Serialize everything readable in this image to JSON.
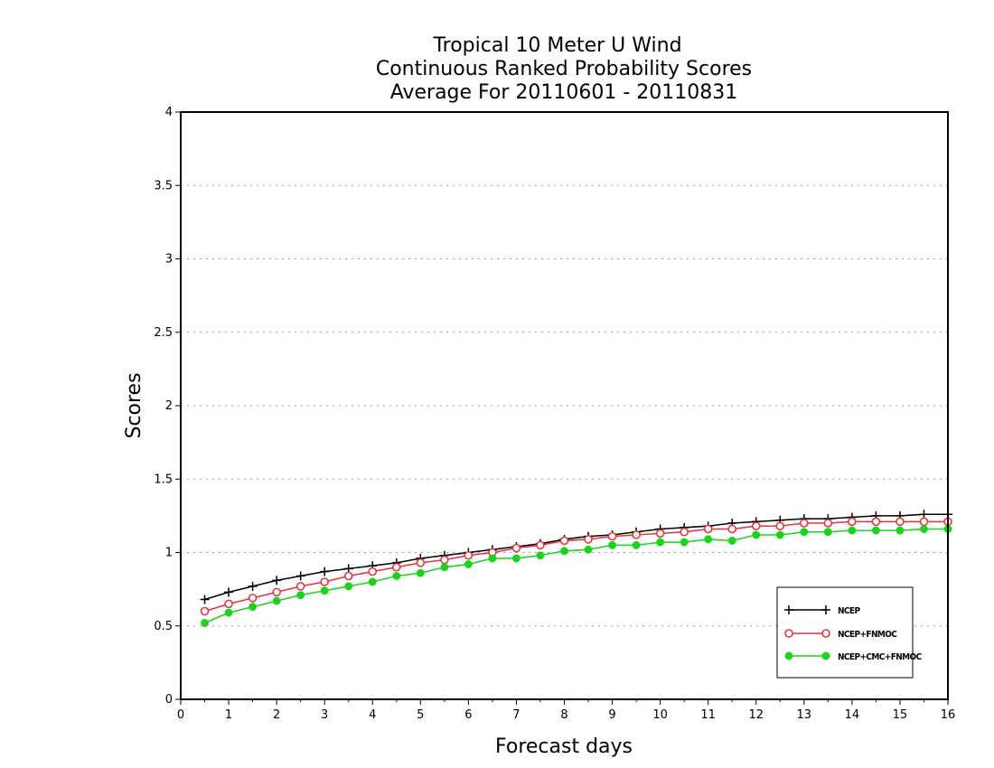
{
  "chart_data": {
    "type": "line",
    "title": [
      "Tropical 10 Meter U Wind",
      "Continuous Ranked Probability Scores",
      "Average For 20110601 - 20110831"
    ],
    "xlabel": "Forecast days",
    "ylabel": "Scores",
    "xlim": [
      0,
      16
    ],
    "ylim": [
      0,
      4
    ],
    "x_ticks": [
      "0",
      "1",
      "2",
      "3",
      "4",
      "5",
      "6",
      "7",
      "8",
      "9",
      "10",
      "11",
      "12",
      "13",
      "14",
      "15",
      "16"
    ],
    "y_ticks": [
      "0",
      "0.5",
      "1",
      "1.5",
      "2",
      "2.5",
      "3",
      "3.5",
      "4"
    ],
    "grid": "horizontal dotted",
    "legend_position": "bottom-right",
    "x": [
      0.5,
      1,
      1.5,
      2,
      2.5,
      3,
      3.5,
      4,
      4.5,
      5,
      5.5,
      6,
      6.5,
      7,
      7.5,
      8,
      8.5,
      9,
      9.5,
      10,
      10.5,
      11,
      11.5,
      12,
      12.5,
      13,
      13.5,
      14,
      14.5,
      15,
      15.5,
      16
    ],
    "series": [
      {
        "name": "NCEP",
        "color": "#000000",
        "marker": "plus",
        "values": [
          0.68,
          0.73,
          0.77,
          0.81,
          0.84,
          0.87,
          0.89,
          0.91,
          0.93,
          0.96,
          0.98,
          1.0,
          1.02,
          1.04,
          1.06,
          1.09,
          1.11,
          1.12,
          1.14,
          1.16,
          1.17,
          1.18,
          1.2,
          1.21,
          1.22,
          1.23,
          1.23,
          1.24,
          1.25,
          1.25,
          1.26,
          1.26
        ]
      },
      {
        "name": "NCEP+FNMOC",
        "color": "#e8333a",
        "marker": "open-circle",
        "values": [
          0.6,
          0.65,
          0.69,
          0.73,
          0.77,
          0.8,
          0.84,
          0.87,
          0.9,
          0.93,
          0.95,
          0.98,
          1.0,
          1.03,
          1.05,
          1.08,
          1.09,
          1.11,
          1.12,
          1.13,
          1.14,
          1.16,
          1.16,
          1.18,
          1.18,
          1.2,
          1.2,
          1.21,
          1.21,
          1.21,
          1.21,
          1.21
        ]
      },
      {
        "name": "NCEP+CMC+FNMOC",
        "color": "#1cd21c",
        "marker": "filled-circle",
        "values": [
          0.52,
          0.59,
          0.63,
          0.67,
          0.71,
          0.74,
          0.77,
          0.8,
          0.84,
          0.86,
          0.9,
          0.92,
          0.96,
          0.96,
          0.98,
          1.01,
          1.02,
          1.05,
          1.05,
          1.07,
          1.07,
          1.09,
          1.08,
          1.12,
          1.12,
          1.14,
          1.14,
          1.15,
          1.15,
          1.15,
          1.16,
          1.16
        ]
      }
    ]
  }
}
